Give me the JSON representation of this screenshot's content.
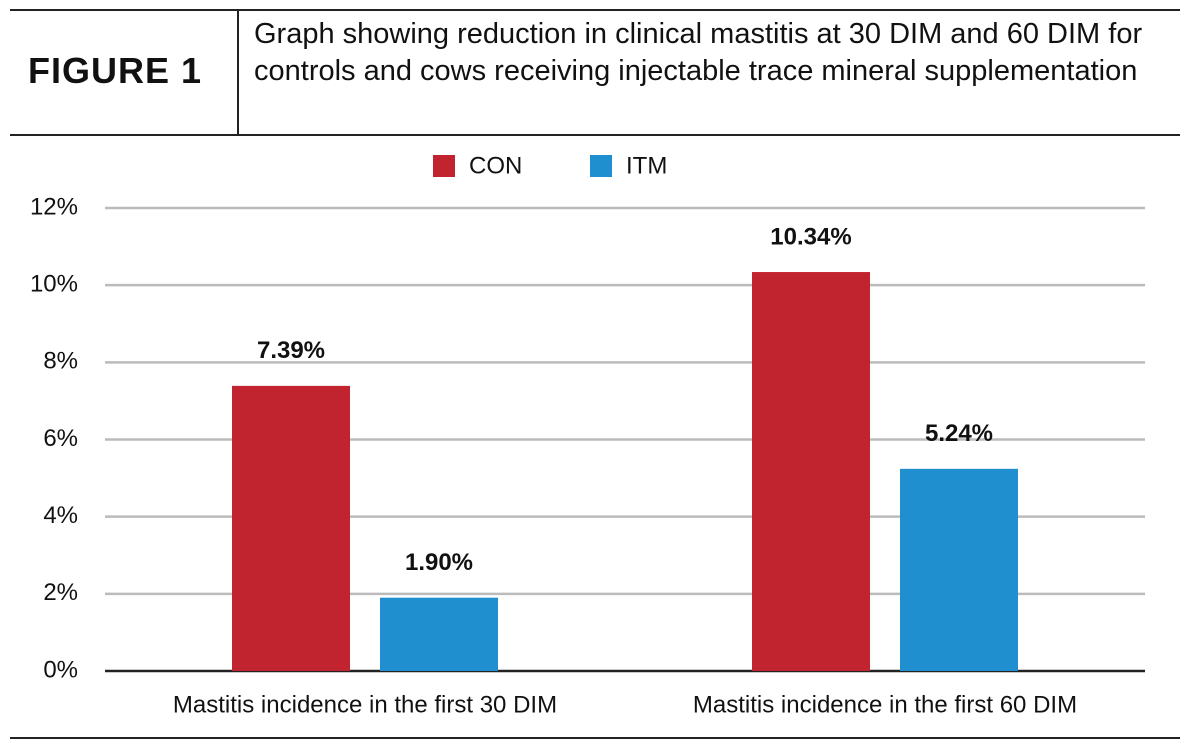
{
  "figure_label": "FIGURE 1",
  "chart_data": {
    "type": "bar",
    "title": "Graph showing reduction in clinical mastitis at 30 DIM and 60 DIM for controls and cows receiving injectable trace mineral supplementation",
    "categories": [
      "Mastitis incidence in the first 30 DIM",
      "Mastitis incidence in the first 60 DIM"
    ],
    "series": [
      {
        "name": "CON",
        "color": "#c1232f",
        "values": [
          7.39,
          10.34
        ],
        "value_labels": [
          "7.39%",
          "10.34%"
        ]
      },
      {
        "name": "ITM",
        "color": "#1f8fcf",
        "values": [
          1.9,
          5.24
        ],
        "value_labels": [
          "1.90%",
          "5.24%"
        ]
      }
    ],
    "ylim": [
      0,
      12
    ],
    "yticks": [
      {
        "value": 0,
        "label": "0%"
      },
      {
        "value": 2,
        "label": "2%"
      },
      {
        "value": 4,
        "label": "4%"
      },
      {
        "value": 6,
        "label": "6%"
      },
      {
        "value": 8,
        "label": "8%"
      },
      {
        "value": 10,
        "label": "10%"
      },
      {
        "value": 12,
        "label": "12%"
      }
    ],
    "grid": true,
    "legend": "top"
  }
}
